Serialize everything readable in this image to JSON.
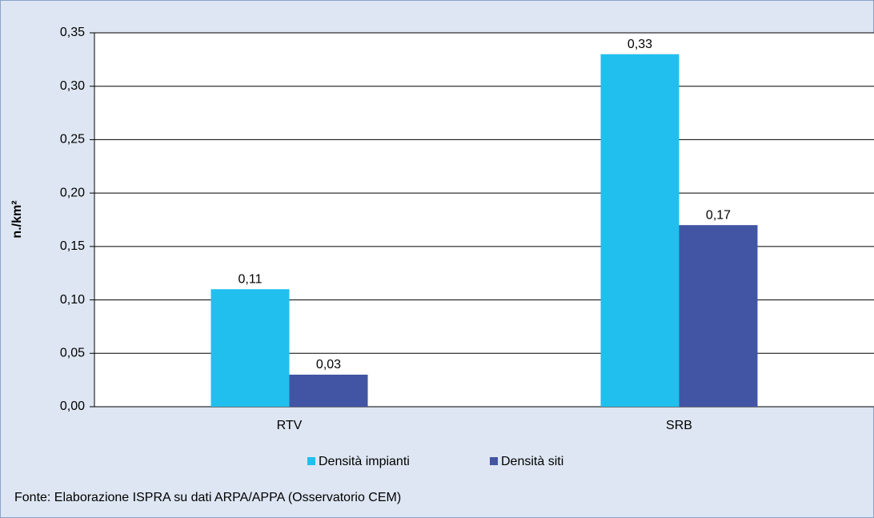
{
  "chart_data": {
    "type": "bar",
    "ylabel": "n./km²",
    "categories": [
      "RTV",
      "SRB"
    ],
    "series": [
      {
        "name": "Densità impianti",
        "color": "#21bfee",
        "values": [
          0.11,
          0.33
        ],
        "value_labels": [
          "0,11",
          "0,33"
        ]
      },
      {
        "name": "Densità siti",
        "color": "#4254a4",
        "values": [
          0.03,
          0.17
        ],
        "value_labels": [
          "0,03",
          "0,17"
        ]
      }
    ],
    "ylim": [
      0,
      0.35
    ],
    "yticks": [
      {
        "value": 0,
        "label": "0,00"
      },
      {
        "value": 0.05,
        "label": "0,05"
      },
      {
        "value": 0.1,
        "label": "0,10"
      },
      {
        "value": 0.15,
        "label": "0,15"
      },
      {
        "value": 0.2,
        "label": "0,20"
      },
      {
        "value": 0.25,
        "label": "0,25"
      },
      {
        "value": 0.3,
        "label": "0,30"
      },
      {
        "value": 0.35,
        "label": "0,35"
      }
    ],
    "grid": true,
    "legend": "bottom",
    "source": "Fonte: Elaborazione ISPRA su dati ARPA/APPA (Osservatorio CEM)"
  }
}
